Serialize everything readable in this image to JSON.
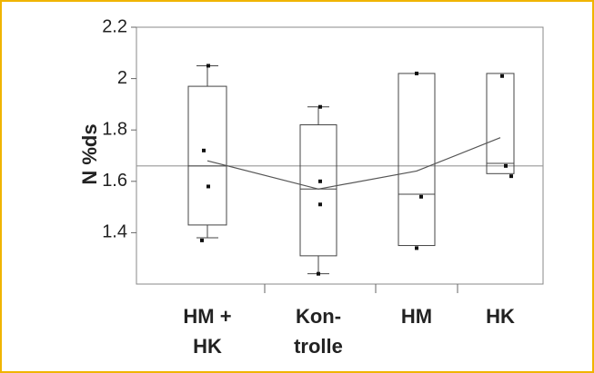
{
  "chart_data": {
    "type": "box",
    "ylabel": "N %ds",
    "categories": [
      [
        "HM +",
        "HK"
      ],
      [
        "Kon-",
        "trolle"
      ],
      [
        "HM"
      ],
      [
        "HK"
      ]
    ],
    "ylim": [
      1.2,
      2.2
    ],
    "yticks": [
      1.4,
      1.6,
      1.8,
      2,
      2.2
    ],
    "boxes": [
      {
        "whisker_low": 1.38,
        "q1": 1.43,
        "median": 1.66,
        "q3": 1.97,
        "whisker_high": 2.05,
        "points": [
          2.05,
          1.72,
          1.58,
          1.37
        ],
        "mean": 1.68
      },
      {
        "whisker_low": 1.24,
        "q1": 1.31,
        "median": 1.57,
        "q3": 1.82,
        "whisker_high": 1.89,
        "points": [
          1.89,
          1.6,
          1.51,
          1.24
        ],
        "mean": 1.57
      },
      {
        "whisker_low": null,
        "q1": 1.35,
        "median": 1.55,
        "q3": 2.02,
        "whisker_high": null,
        "points": [
          2.02,
          1.54,
          1.34
        ],
        "mean": 1.64
      },
      {
        "whisker_low": null,
        "q1": 1.63,
        "median": 1.67,
        "q3": 2.02,
        "whisker_high": null,
        "points": [
          2.01,
          1.66,
          1.62
        ],
        "mean": 1.77
      }
    ],
    "reference_line": 1.66,
    "color": "#444444",
    "reference_color": "#999999"
  }
}
